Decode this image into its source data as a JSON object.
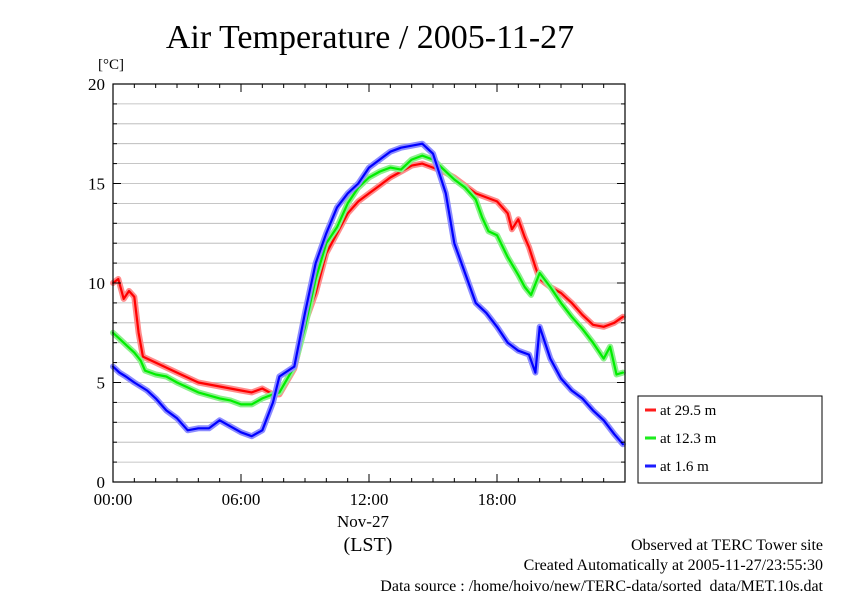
{
  "chart_data": {
    "type": "line",
    "title": "Air Temperature / 2005-11-27",
    "ylabel": "[°C]",
    "xlabel": "(LST)",
    "date_label": "Nov-27",
    "ylim": [
      0,
      20
    ],
    "xlim": [
      0,
      24
    ],
    "y_ticks": [
      0,
      5,
      10,
      15,
      20
    ],
    "x_ticks": [
      {
        "value": 0,
        "label": "00:00"
      },
      {
        "value": 6,
        "label": "06:00"
      },
      {
        "value": 12,
        "label": "12:00"
      },
      {
        "value": 18,
        "label": "18:00"
      }
    ],
    "grid": true,
    "legend_position": "right",
    "series": [
      {
        "name": "at 29.5 m",
        "color": "#ff0000",
        "halo": "#ff8c8c",
        "x": [
          0.0,
          0.25,
          0.5,
          0.75,
          1.0,
          1.2,
          1.4,
          2.0,
          3.0,
          4.0,
          5.0,
          6.0,
          6.5,
          7.0,
          7.5,
          7.8,
          8.5,
          9.0,
          9.5,
          10.0,
          10.5,
          11.0,
          11.5,
          12.0,
          12.5,
          13.0,
          13.5,
          14.0,
          14.5,
          15.0,
          15.5,
          16.0,
          16.5,
          17.0,
          17.5,
          18.0,
          18.5,
          18.7,
          19.0,
          19.3,
          19.5,
          19.8,
          20.0,
          20.5,
          21.0,
          21.5,
          22.0,
          22.5,
          23.0,
          23.5,
          23.9
        ],
        "y": [
          10.0,
          10.2,
          9.2,
          9.6,
          9.3,
          7.5,
          6.3,
          6.0,
          5.5,
          5.0,
          4.8,
          4.6,
          4.5,
          4.7,
          4.4,
          4.4,
          5.7,
          8.0,
          9.5,
          11.5,
          12.5,
          13.5,
          14.1,
          14.5,
          14.9,
          15.3,
          15.6,
          15.9,
          16.0,
          15.8,
          15.6,
          15.3,
          14.9,
          14.5,
          14.3,
          14.1,
          13.5,
          12.7,
          13.2,
          12.3,
          11.8,
          10.8,
          10.2,
          9.8,
          9.5,
          9.0,
          8.4,
          7.9,
          7.8,
          8.0,
          8.3
        ]
      },
      {
        "name": "at 12.3 m",
        "color": "#00ee00",
        "halo": "#8cf08c",
        "x": [
          0.0,
          0.3,
          0.6,
          1.0,
          1.3,
          1.5,
          2.0,
          2.5,
          3.0,
          4.0,
          5.0,
          5.5,
          6.0,
          6.5,
          7.0,
          7.5,
          7.8,
          8.5,
          9.0,
          9.5,
          10.0,
          10.5,
          11.0,
          11.5,
          12.0,
          12.5,
          13.0,
          13.5,
          14.0,
          14.5,
          15.0,
          15.5,
          16.0,
          16.5,
          17.0,
          17.3,
          17.6,
          18.0,
          18.5,
          19.0,
          19.3,
          19.6,
          20.0,
          20.5,
          21.0,
          21.5,
          22.0,
          22.5,
          23.0,
          23.3,
          23.6,
          23.9
        ],
        "y": [
          7.5,
          7.2,
          6.9,
          6.5,
          6.1,
          5.6,
          5.4,
          5.3,
          5.0,
          4.5,
          4.2,
          4.1,
          3.9,
          3.9,
          4.2,
          4.4,
          4.5,
          5.8,
          7.8,
          10.2,
          12.0,
          12.8,
          14.0,
          14.8,
          15.3,
          15.6,
          15.8,
          15.7,
          16.2,
          16.4,
          16.2,
          15.7,
          15.2,
          14.8,
          14.2,
          13.3,
          12.6,
          12.4,
          11.3,
          10.4,
          9.8,
          9.4,
          10.5,
          9.8,
          9.0,
          8.3,
          7.7,
          7.0,
          6.2,
          6.8,
          5.4,
          5.5
        ]
      },
      {
        "name": "at 1.6 m",
        "color": "#0000ff",
        "halo": "#8c8cff",
        "x": [
          0.0,
          0.3,
          0.6,
          1.0,
          1.3,
          1.6,
          2.0,
          2.5,
          3.0,
          3.5,
          4.0,
          4.5,
          5.0,
          5.5,
          6.0,
          6.5,
          7.0,
          7.5,
          7.8,
          8.5,
          9.0,
          9.5,
          10.0,
          10.5,
          11.0,
          11.5,
          12.0,
          12.5,
          13.0,
          13.5,
          14.0,
          14.5,
          15.0,
          15.3,
          15.6,
          16.0,
          16.5,
          17.0,
          17.5,
          18.0,
          18.5,
          19.0,
          19.5,
          19.8,
          20.0,
          20.5,
          21.0,
          21.5,
          22.0,
          22.5,
          23.0,
          23.5,
          23.9
        ],
        "y": [
          5.8,
          5.5,
          5.3,
          5.0,
          4.8,
          4.6,
          4.2,
          3.6,
          3.2,
          2.6,
          2.7,
          2.7,
          3.1,
          2.8,
          2.5,
          2.3,
          2.6,
          4.0,
          5.3,
          5.8,
          8.5,
          11.0,
          12.5,
          13.8,
          14.5,
          15.0,
          15.8,
          16.2,
          16.6,
          16.8,
          16.9,
          17.0,
          16.5,
          15.5,
          14.5,
          12.0,
          10.5,
          9.0,
          8.5,
          7.8,
          7.0,
          6.6,
          6.4,
          5.5,
          7.8,
          6.2,
          5.2,
          4.6,
          4.2,
          3.6,
          3.1,
          2.4,
          1.9
        ]
      }
    ]
  },
  "footer": {
    "site": "Observed at TERC Tower site",
    "created": "Created Automatically at 2005-11-27/23:55:30",
    "source": "Data source : /home/hoivo/new/TERC-data/sorted  data/MET.10s.dat"
  }
}
